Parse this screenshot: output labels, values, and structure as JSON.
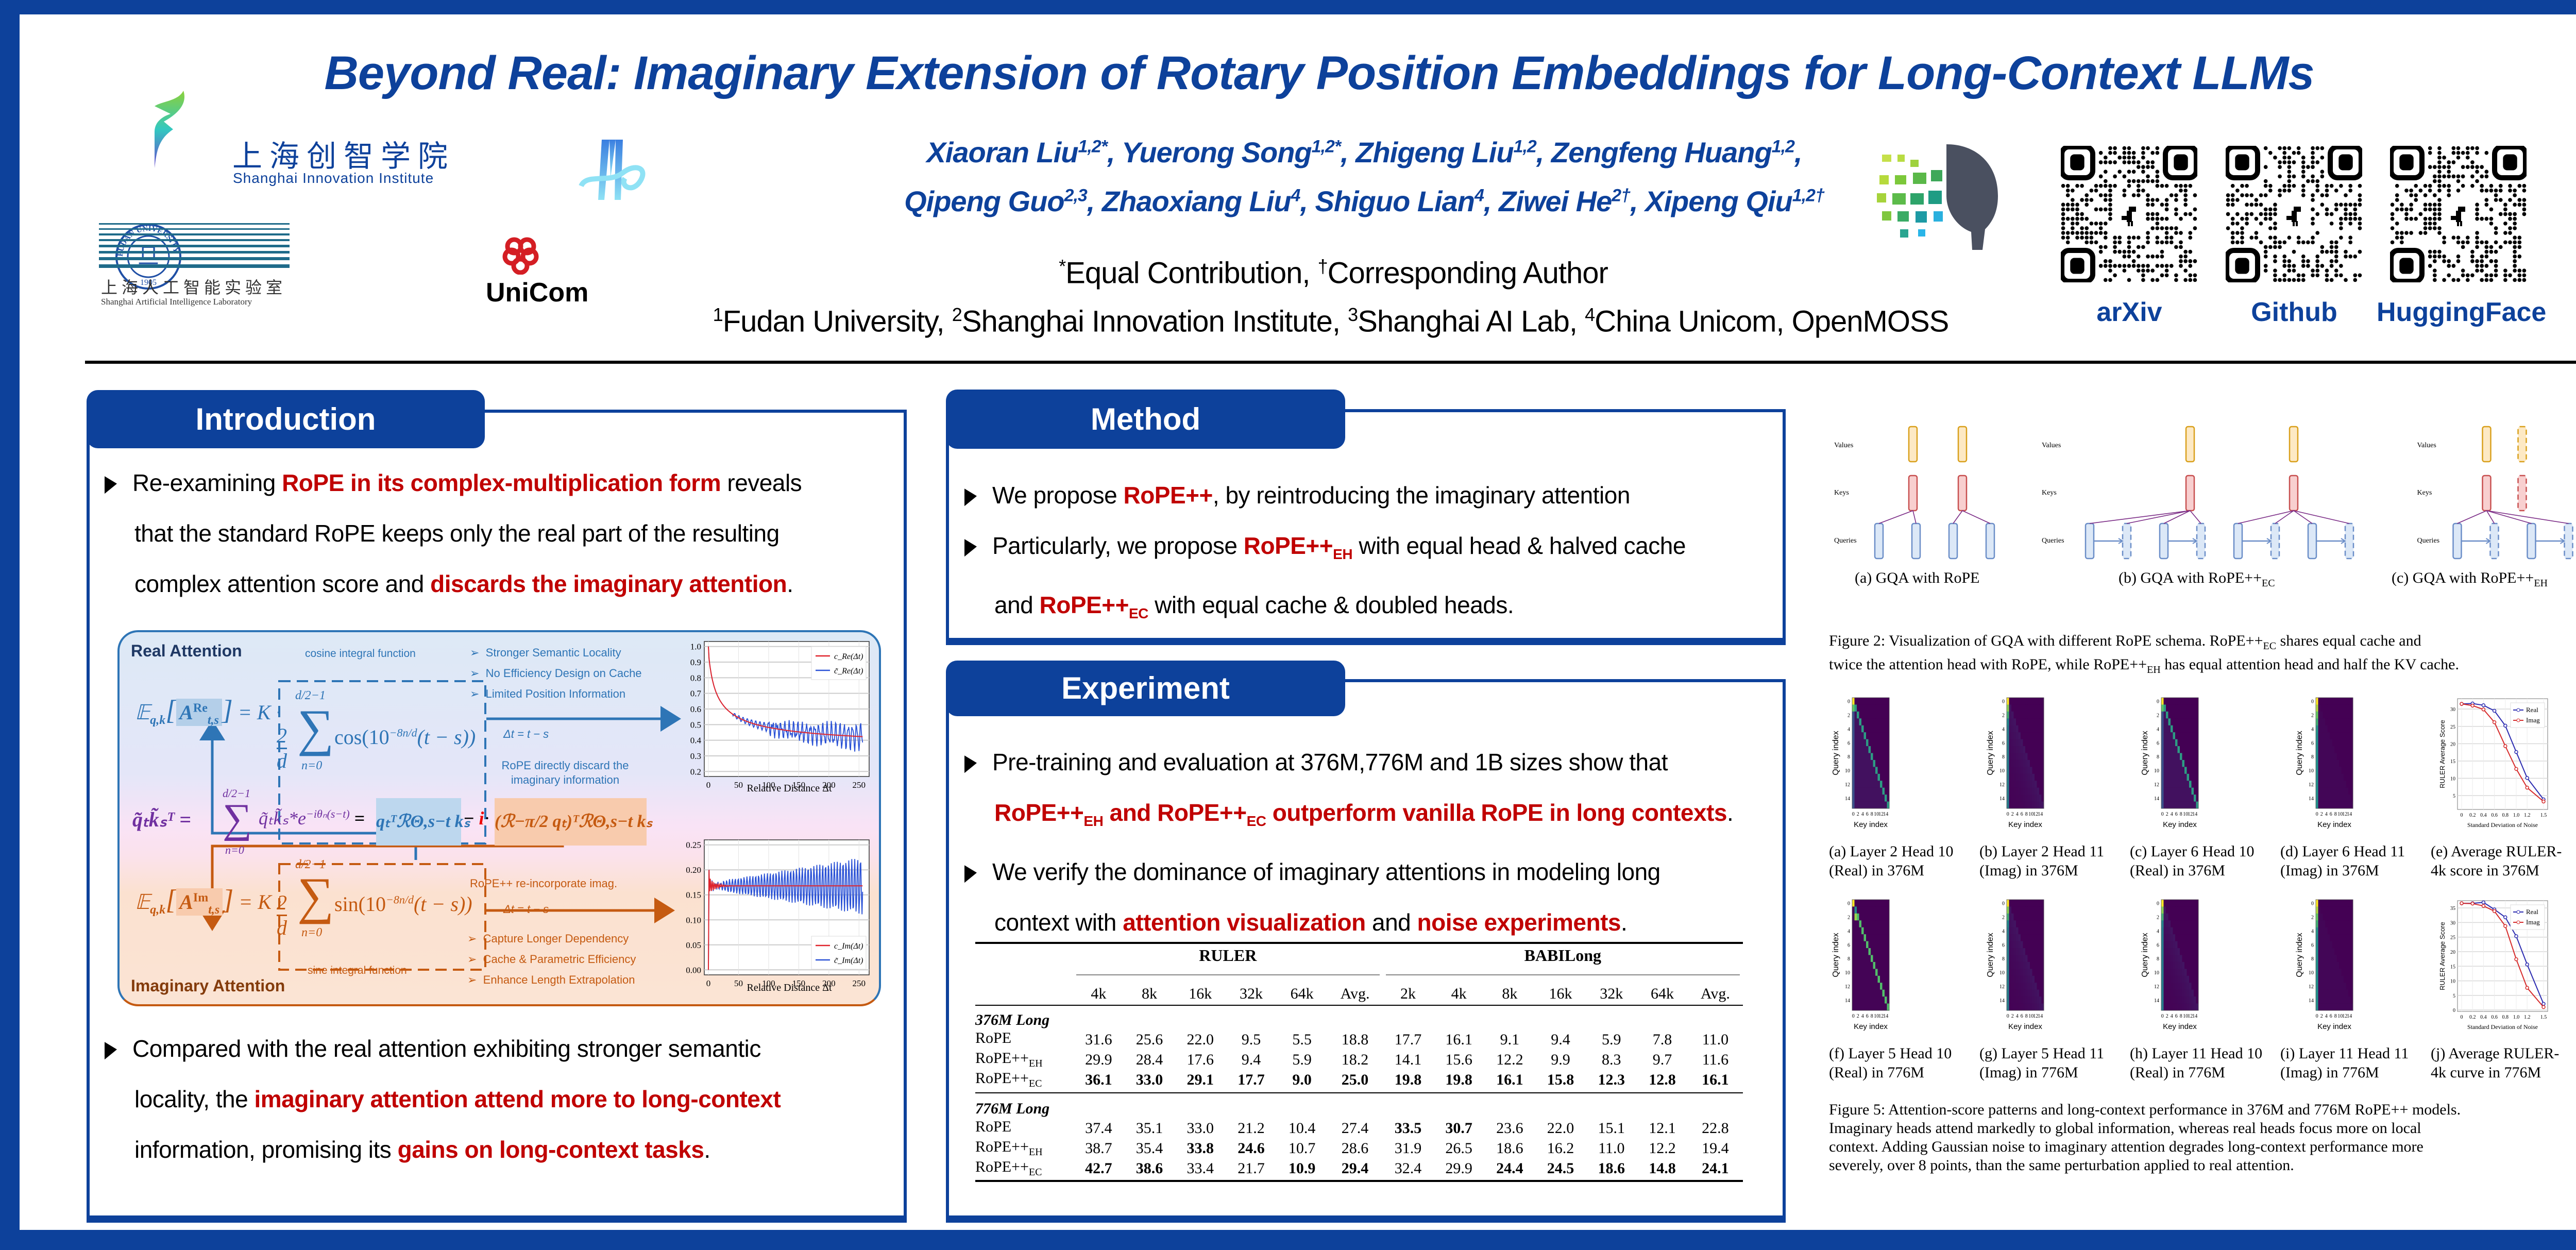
{
  "header": {
    "title": "Beyond Real: Imaginary Extension of Rotary Position Embeddings for Long-Context LLMs",
    "authors_line1": [
      {
        "name": "Xiaoran Liu",
        "sup": "1,2*"
      },
      {
        "name": "Yuerong Song",
        "sup": "1,2*"
      },
      {
        "name": "Zhigeng Liu",
        "sup": "1,2"
      },
      {
        "name": "Zengfeng Huang",
        "sup": "1,2"
      }
    ],
    "authors_line2": [
      {
        "name": "Qipeng Guo",
        "sup": "2,3"
      },
      {
        "name": "Zhaoxiang Liu",
        "sup": "4"
      },
      {
        "name": "Shiguo Lian",
        "sup": "4"
      },
      {
        "name": "Ziwei He",
        "sup": "2†"
      },
      {
        "name": "Xipeng Qiu",
        "sup": "1,2†"
      }
    ],
    "contribution": {
      "star": "*",
      "equal": "Equal Contribution, ",
      "dagger": "†",
      "corr": "Corresponding Author"
    },
    "affiliations": [
      {
        "sup": "1",
        "name": "Fudan University, "
      },
      {
        "sup": "2",
        "name": "Shanghai Innovation Institute, "
      },
      {
        "sup": "3",
        "name": "Shanghai AI Lab, "
      },
      {
        "sup": "4",
        "name": "China Unicom, OpenMOSS"
      }
    ],
    "logos": {
      "sii_cn": "上海创智学院",
      "sii_en": "Shanghai Innovation Institute",
      "fudan_ring": "FUDAN UNIVERSITY",
      "fudan_year": "1905",
      "fudan_char": "旦",
      "shlab_cn": "上海人工智能实验室",
      "shlab_en": "Shanghai Artificial Intelligence Laboratory",
      "unicom": "UniCom"
    },
    "links": [
      {
        "label": "arXiv"
      },
      {
        "label": "Github"
      },
      {
        "label": "HuggingFace"
      }
    ]
  },
  "introduction": {
    "tab": "Introduction",
    "bullet1": {
      "p1": "Re-examining ",
      "h1": "RoPE in its complex-multiplication form",
      "p2": " reveals",
      "line2": "that the standard RoPE keeps only the real part of the resulting",
      "p3": "complex attention score and ",
      "h2": "discards the imaginary attention",
      "p4": "."
    },
    "figure": {
      "real_title": "Real Attention",
      "imag_title": "Imaginary Attention",
      "cos_label": "cosine integral function",
      "sin_label": "sine integral function",
      "real_points": [
        "Stronger Semantic Locality",
        "No Efficiency Design on Cache",
        "Limited Position Information"
      ],
      "imag_points": [
        "Capture Longer Dependency",
        "Cache & Parametric Efficiency",
        "Enhance Length Extrapolation"
      ],
      "delta_real": "Δt = t − s",
      "delta_imag": "Δt = t − s",
      "discard_note": "RoPE directly discard the imaginary information",
      "reinc_note": "RoPE++ re-incorporate imag.",
      "eq_real_lhs": "𝔼",
      "eq_real_sub": "q,k",
      "eq_real_A": "A",
      "eq_real_sup": "Re",
      "eq_real_ts": "t,s",
      "eq_imag_sup": "Im",
      "eq_K": "= K ·",
      "eq_frac_num": "2",
      "eq_frac_den": "d",
      "eq_sum_top": "d/2−1",
      "eq_sum_bot": "n=0",
      "eq_cos": "cos(10",
      "eq_sin": "sin(10",
      "eq_exp": "−8n/d",
      "eq_tail": "(t − s))",
      "eq_mid_lhs": "q̃ₜk̃ₛᵀ =",
      "eq_mid_sum_term": "q̃ₜk̃ₛ*e",
      "eq_mid_exp": "−iθₙ(s−t)",
      "eq_mid_eq": "=",
      "eq_mid_real": "qₜᵀℛΘ,s−t kₛ",
      "eq_mid_minus": "−",
      "eq_mid_i": "i",
      "eq_mid_dot": "·",
      "eq_mid_imag": "(ℛ−π/2 qₜ)ᵀℛΘ,s−t kₛ",
      "plot_real": {
        "yticks": [
          "1.0",
          "0.9",
          "0.8",
          "0.7",
          "0.6",
          "0.5",
          "0.4",
          "0.3",
          "0.2"
        ],
        "xticks": [
          "0",
          "50",
          "100",
          "150",
          "200",
          "250"
        ],
        "xlabel": "Relative Distance Δt",
        "legend": [
          "c_Re(Δt)",
          "c̃_Re(Δt)"
        ]
      },
      "plot_imag": {
        "yticks": [
          "0.25",
          "0.20",
          "0.15",
          "0.10",
          "0.05",
          "0.00"
        ],
        "xticks": [
          "0",
          "50",
          "100",
          "150",
          "200",
          "250"
        ],
        "xlabel": "Relative Distance Δt",
        "legend": [
          "c_Im(Δt)",
          "c̃_Im(Δt)"
        ]
      }
    },
    "bullet2": {
      "line1": "Compared with the real attention exhibiting stronger semantic",
      "p1": "locality, the ",
      "h1": "imaginary attention attend more to long-context",
      "p2": "information, promising its ",
      "h2": "gains on long-context tasks",
      "p3": "."
    }
  },
  "method": {
    "tab": "Method",
    "b1_p1": "We propose ",
    "b1_h": "RoPE++",
    "b1_p2": ", by reintroducing the imaginary attention",
    "b2_p1": "Particularly, we propose ",
    "b2_h": "RoPE++",
    "b2_sub": "EH",
    "b2_p2": " with equal head & halved cache",
    "b3_p1": "and ",
    "b3_h": "RoPE++",
    "b3_sub": "EC",
    "b3_p2": " with equal cache & doubled heads."
  },
  "experiment": {
    "tab": "Experiment",
    "b1_line1": "Pre-training and evaluation at 376M,776M and 1B sizes show that",
    "b1_h1": "RoPE++",
    "b1_s1": "EH",
    "b1_h2": " and RoPE++",
    "b1_s2": "EC",
    "b1_h3": " outperform vanilla RoPE in long contexts",
    "b1_end": ".",
    "b2_line1": "We verify the dominance of imaginary attentions in modeling long",
    "b2_p1": "context with ",
    "b2_h1": "attention visualization",
    "b2_p2": " and ",
    "b2_h2": "noise experiments",
    "b2_p3": "."
  },
  "table": {
    "group_ruler": "RULER",
    "group_babi": "BABILong",
    "ruler_cols": [
      "4k",
      "8k",
      "16k",
      "32k",
      "64k",
      "Avg."
    ],
    "babi_cols": [
      "2k",
      "4k",
      "8k",
      "16k",
      "32k",
      "64k",
      "Avg."
    ],
    "sections": [
      {
        "title": "376M Long",
        "rows": [
          {
            "name": "RoPE",
            "sub": "",
            "values": [
              "31.6",
              "25.6",
              "22.0",
              "9.5",
              "5.5",
              "18.8",
              "17.7",
              "16.1",
              "9.1",
              "9.4",
              "5.9",
              "7.8",
              "11.0"
            ],
            "bold": [
              false,
              false,
              false,
              false,
              false,
              false,
              false,
              false,
              false,
              false,
              false,
              false,
              false
            ]
          },
          {
            "name": "RoPE++",
            "sub": "EH",
            "values": [
              "29.9",
              "28.4",
              "17.6",
              "9.4",
              "5.9",
              "18.2",
              "14.1",
              "15.6",
              "12.2",
              "9.9",
              "8.3",
              "9.7",
              "11.6"
            ],
            "bold": [
              false,
              false,
              false,
              false,
              false,
              false,
              false,
              false,
              false,
              false,
              false,
              false,
              false
            ]
          },
          {
            "name": "RoPE++",
            "sub": "EC",
            "values": [
              "36.1",
              "33.0",
              "29.1",
              "17.7",
              "9.0",
              "25.0",
              "19.8",
              "19.8",
              "16.1",
              "15.8",
              "12.3",
              "12.8",
              "16.1"
            ],
            "bold": [
              true,
              true,
              true,
              true,
              true,
              true,
              true,
              true,
              true,
              true,
              true,
              true,
              true
            ]
          }
        ]
      },
      {
        "title": "776M Long",
        "rows": [
          {
            "name": "RoPE",
            "sub": "",
            "values": [
              "37.4",
              "35.1",
              "33.0",
              "21.2",
              "10.4",
              "27.4",
              "33.5",
              "30.7",
              "23.6",
              "22.0",
              "15.1",
              "12.1",
              "22.8"
            ],
            "bold": [
              false,
              false,
              false,
              false,
              false,
              false,
              true,
              true,
              false,
              false,
              false,
              false,
              false
            ]
          },
          {
            "name": "RoPE++",
            "sub": "EH",
            "values": [
              "38.7",
              "35.4",
              "33.8",
              "24.6",
              "10.7",
              "28.6",
              "31.9",
              "26.5",
              "18.6",
              "16.2",
              "11.0",
              "12.2",
              "19.4"
            ],
            "bold": [
              false,
              false,
              true,
              true,
              false,
              false,
              false,
              false,
              false,
              false,
              false,
              false,
              false
            ]
          },
          {
            "name": "RoPE++",
            "sub": "EC",
            "values": [
              "42.7",
              "38.6",
              "33.4",
              "21.7",
              "10.9",
              "29.4",
              "32.4",
              "29.9",
              "24.4",
              "24.5",
              "18.6",
              "14.8",
              "24.1"
            ],
            "bold": [
              true,
              true,
              false,
              false,
              true,
              true,
              false,
              false,
              true,
              true,
              true,
              true,
              true
            ]
          }
        ]
      }
    ]
  },
  "figure2": {
    "row_labels": [
      "Values",
      "Keys",
      "Queries"
    ],
    "panels": [
      {
        "caption": "(a) GQA with RoPE",
        "sub": ""
      },
      {
        "caption": "(b) GQA with RoPE++",
        "sub": "EC"
      },
      {
        "caption": "(c) GQA with RoPE++",
        "sub": "EH"
      }
    ],
    "caption_l1_a": "Figure 2:  Visualization of GQA with different RoPE schema.  RoPE++",
    "caption_l1_sub": "EC",
    "caption_l1_b": " shares equal cache and",
    "caption_l2_a": "twice the attention head with RoPE, while RoPE++",
    "caption_l2_sub": "EH",
    "caption_l2_b": " has equal attention head and half the KV cache."
  },
  "figure5": {
    "heatmap_ylabel": "Query index",
    "heatmap_xlabel": "Key index",
    "heatmap_yticks": [
      "0",
      "2",
      "4",
      "6",
      "8",
      "10",
      "12",
      "14"
    ],
    "heatmap_xticks": [
      "0",
      "2",
      "4",
      "6",
      "8",
      "10",
      "12",
      "14"
    ],
    "row1_captions": [
      [
        "(a) Layer 2 Head 10",
        "(Real) in 376M"
      ],
      [
        "(b) Layer 2 Head 11",
        "(Imag) in 376M"
      ],
      [
        "(c) Layer 6 Head 10",
        "(Real) in 376M"
      ],
      [
        "(d) Layer 6 Head 11",
        "(Imag) in 376M"
      ],
      [
        "(e) Average RULER-",
        "4k score in 376M"
      ]
    ],
    "row2_captions": [
      [
        "(f) Layer 5 Head 10",
        "(Real) in 776M"
      ],
      [
        "(g) Layer 5 Head 11",
        "(Imag) in 776M"
      ],
      [
        "(h) Layer 11 Head 10",
        "(Real) in 776M"
      ],
      [
        "(i) Layer 11 Head 11",
        "(Imag) in 776M"
      ],
      [
        "(j) Average RULER-",
        "4k curve in 776M"
      ]
    ],
    "caption": [
      "Figure 5: Attention-score patterns and long-context performance in 376M and 776M RoPE++ models.",
      "Imaginary heads attend markedly to global information, whereas real heads focus more on local",
      "context.  Adding Gaussian noise to imaginary attention degrades long-context performance more",
      "severely, over 8 points, than the same perturbation applied to real attention."
    ]
  },
  "chart_data": [
    {
      "type": "line",
      "title": "(e) Average RULER-4k score in 376M",
      "xlabel": "Standard Deviation of Noise",
      "ylabel": "RULER Average Score",
      "x": [
        0,
        0.2,
        0.4,
        0.6,
        0.8,
        1.0,
        1.2,
        1.5
      ],
      "xticks": [
        "0",
        "0.2",
        "0.4",
        "0.6",
        "0.8",
        "1.0",
        "1.2",
        "1.5"
      ],
      "yticks": [
        "5",
        "10",
        "15",
        "20",
        "25",
        "30"
      ],
      "ylim": [
        1,
        33
      ],
      "legend": "top-right",
      "series": [
        {
          "name": "Real",
          "color": "#2b2bb0",
          "values": [
            31.5,
            31.6,
            31.1,
            29.5,
            25.2,
            17.6,
            10.1,
            3.9
          ]
        },
        {
          "name": "Imag",
          "color": "#d62b2b",
          "values": [
            31.5,
            31.0,
            29.9,
            26.2,
            19.3,
            12.7,
            7.3,
            3.3
          ]
        }
      ]
    },
    {
      "type": "line",
      "title": "(j) Average RULER-4k curve in 776M",
      "xlabel": "Standard Deviation of Noise",
      "ylabel": "RULER Average Score",
      "x": [
        0,
        0.2,
        0.4,
        0.6,
        0.8,
        1.0,
        1.2,
        1.5
      ],
      "xticks": [
        "0",
        "0.2",
        "0.4",
        "0.6",
        "0.8",
        "1.0",
        "1.2",
        "1.5"
      ],
      "yticks": [
        "0",
        "5",
        "10",
        "15",
        "20",
        "25",
        "30",
        "35"
      ],
      "ylim": [
        -0.5,
        37.5
      ],
      "legend": "top-right",
      "series": [
        {
          "name": "Real",
          "color": "#2b2bb0",
          "values": [
            36.6,
            36.6,
            36.9,
            34.5,
            31.8,
            25.3,
            15.6,
            2.1
          ]
        },
        {
          "name": "Imag",
          "color": "#d62b2b",
          "values": [
            36.6,
            36.5,
            35.7,
            33.9,
            28.8,
            17.4,
            7.6,
            1.0
          ]
        }
      ]
    }
  ],
  "colors": {
    "brand": "#0d419b",
    "highlight": "#c00000",
    "real_blue": "#2e75b6",
    "imag_orange": "#c55a11",
    "purple": "#7030a0"
  }
}
